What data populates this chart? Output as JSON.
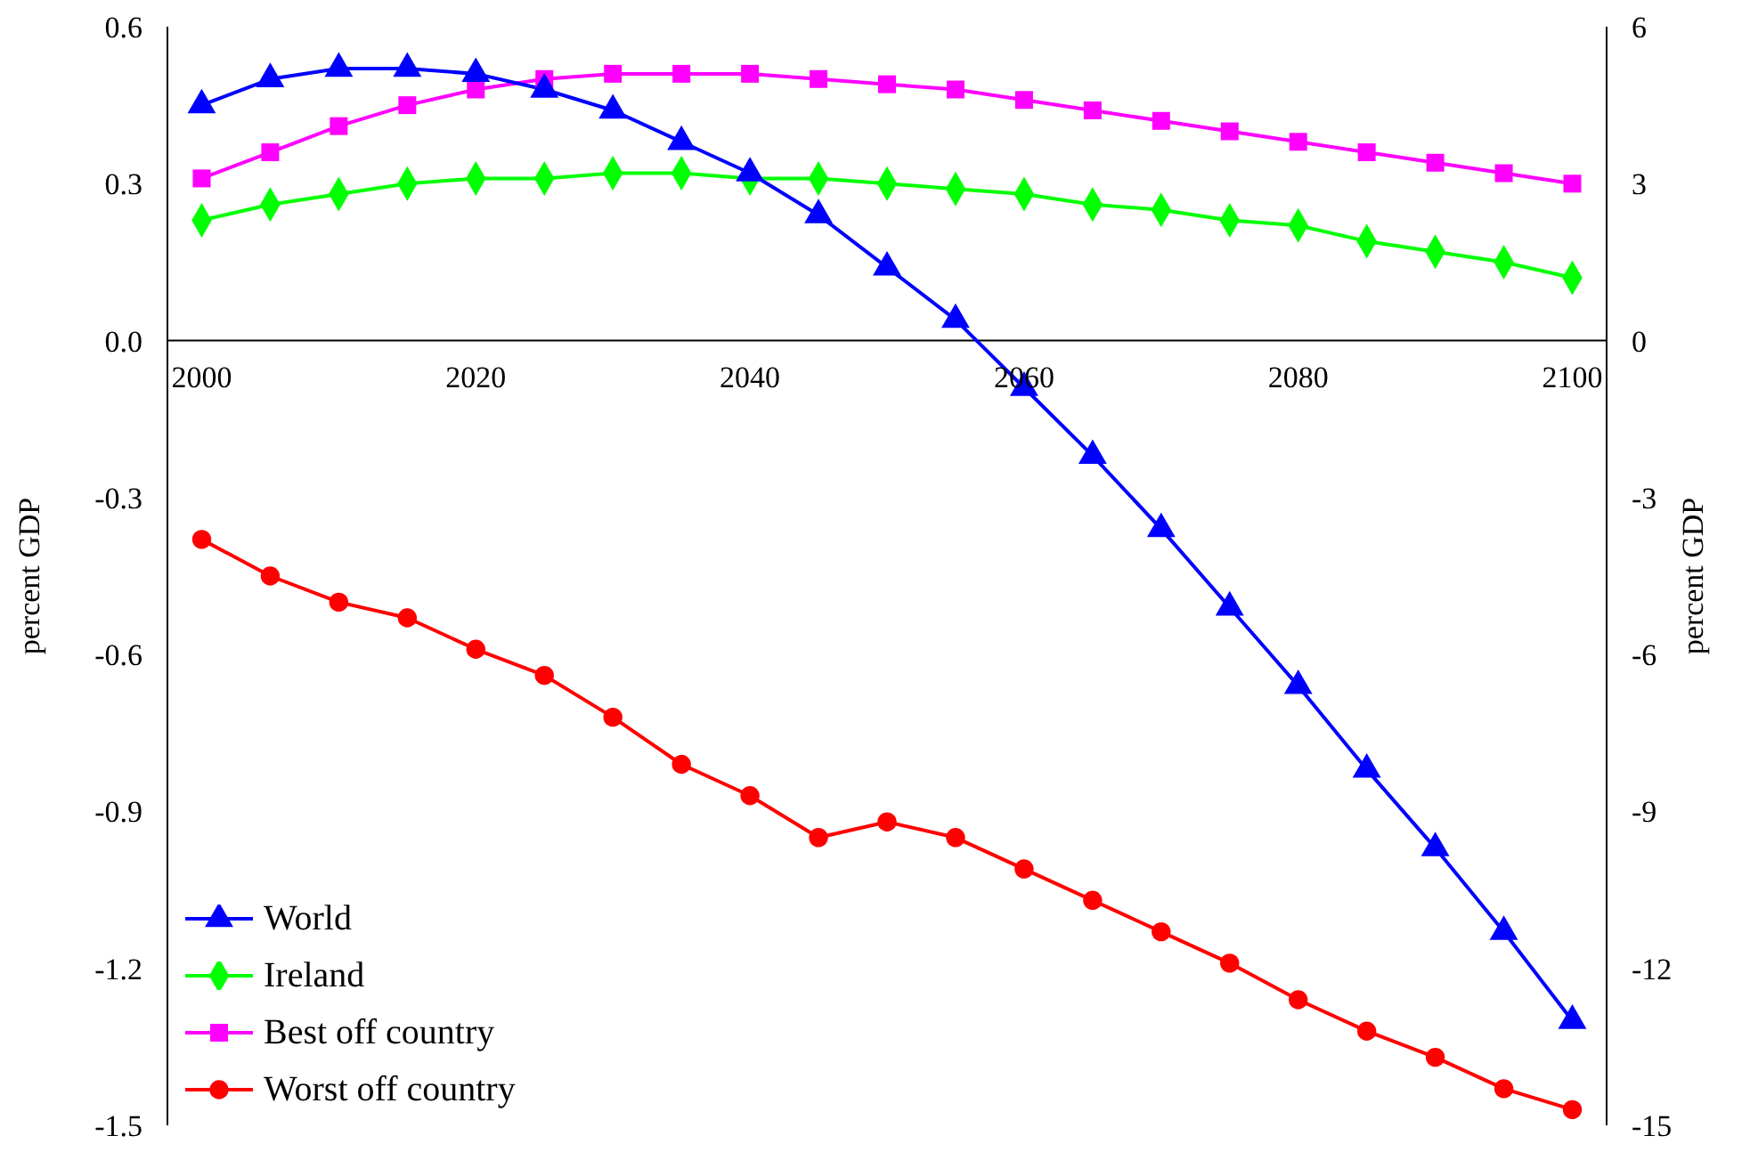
{
  "chart_data": {
    "type": "line",
    "ylabel": "percent GDP",
    "y2label": "percent GDP",
    "x": [
      2000,
      2005,
      2010,
      2015,
      2020,
      2025,
      2030,
      2035,
      2040,
      2045,
      2050,
      2055,
      2060,
      2065,
      2070,
      2075,
      2080,
      2085,
      2090,
      2095,
      2100
    ],
    "xlim": [
      1997.5,
      2102.5
    ],
    "xticks": [
      2000,
      2020,
      2040,
      2060,
      2080,
      2100
    ],
    "ylim": [
      -1.5,
      0.6
    ],
    "yticks": [
      -1.5,
      -1.2,
      -0.9,
      -0.6,
      -0.3,
      {
        "value": 0,
        "label": "0.0"
      },
      0.3,
      0.6
    ],
    "y2lim": [
      -15,
      6
    ],
    "y2ticks": [
      -15,
      -12,
      -9,
      -6,
      -3,
      0,
      3,
      6
    ],
    "grid": false,
    "legend": "bottom left",
    "line_style": "solid",
    "series": [
      {
        "name": "World",
        "color": "#0000ff",
        "marker": "triangle",
        "values": [
          0.45,
          0.5,
          0.52,
          0.52,
          0.51,
          0.48,
          0.44,
          0.38,
          0.32,
          0.24,
          0.14,
          0.04,
          -0.09,
          -0.22,
          -0.36,
          -0.51,
          -0.66,
          -0.82,
          -0.97,
          -1.13,
          -1.3
        ]
      },
      {
        "name": "Ireland",
        "color": "#00ff00",
        "marker": "diamond",
        "values": [
          0.23,
          0.26,
          0.28,
          0.3,
          0.31,
          0.31,
          0.32,
          0.32,
          0.31,
          0.31,
          0.3,
          0.29,
          0.28,
          0.26,
          0.25,
          0.23,
          0.22,
          0.19,
          0.17,
          0.15,
          0.12
        ]
      },
      {
        "name": "Best off country",
        "color": "#ff00ff",
        "marker": "square",
        "axis": "y2",
        "values": [
          3.1,
          3.6,
          4.1,
          4.5,
          4.8,
          5.0,
          5.1,
          5.1,
          5.1,
          5.0,
          4.9,
          4.8,
          4.6,
          4.4,
          4.2,
          4.0,
          3.8,
          3.6,
          3.4,
          3.2,
          3.0
        ]
      },
      {
        "name": "Worst off country",
        "color": "#ff0000",
        "marker": "circle",
        "axis": "y2",
        "values": [
          -3.8,
          -4.5,
          -5.0,
          -5.3,
          -5.9,
          -6.4,
          -7.2,
          -8.1,
          -8.7,
          -9.5,
          -9.2,
          -9.5,
          -10.1,
          -10.7,
          -11.3,
          -11.9,
          -12.6,
          -13.2,
          -13.7,
          -14.3,
          -14.7
        ]
      }
    ]
  }
}
